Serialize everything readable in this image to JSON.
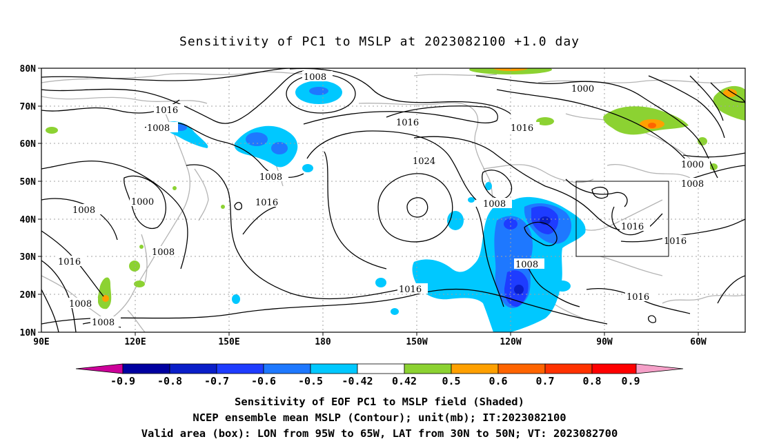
{
  "title": "Sensitivity of PC1 to MSLP at 2023082100 +1.0 day",
  "map": {
    "lat_ticks": [
      "80N",
      "70N",
      "60N",
      "50N",
      "40N",
      "30N",
      "20N",
      "10N"
    ],
    "lon_ticks": [
      "90E",
      "120E",
      "150E",
      "180",
      "150W",
      "120W",
      "90W",
      "60W"
    ],
    "contour_labels": [
      "1008",
      "1016",
      "1008",
      "1000",
      "1008",
      "1016",
      "1008",
      "1016",
      "1008",
      "1008",
      "1008",
      "1016",
      "1024",
      "1016",
      "1008",
      "1016",
      "1008",
      "1016",
      "1000",
      "1000",
      "1008",
      "1016",
      "1016",
      "1008",
      "1008"
    ],
    "valid_box": {
      "lon_min": -95,
      "lon_max": -65,
      "lat_min": 30,
      "lat_max": 50
    },
    "colors": {
      "coast": "#b4b4b4",
      "contour": "#000000",
      "grid": "#a0a0a0"
    }
  },
  "colorbar": {
    "labels": [
      "-0.9",
      "-0.8",
      "-0.7",
      "-0.6",
      "-0.5",
      "-0.42",
      "0.42",
      "0.5",
      "0.6",
      "0.7",
      "0.8",
      "0.9"
    ],
    "colors": [
      "#cc0099",
      "#0000a0",
      "#0a1ec8",
      "#1e3cff",
      "#1e78ff",
      "#00c8ff",
      "#ffffff",
      "#8cd232",
      "#ffa000",
      "#ff6400",
      "#ff3200",
      "#ff0000",
      "#f5a0c8"
    ]
  },
  "captions": {
    "line1": "Sensitivity of EOF PC1 to MSLP field (Shaded)",
    "line2": "NCEP ensemble mean MSLP (Contour); unit(mb); IT:2023082100",
    "line3": "Valid area (box): LON from 95W to 65W, LAT from 30N to 50N; VT: 2023082700"
  }
}
